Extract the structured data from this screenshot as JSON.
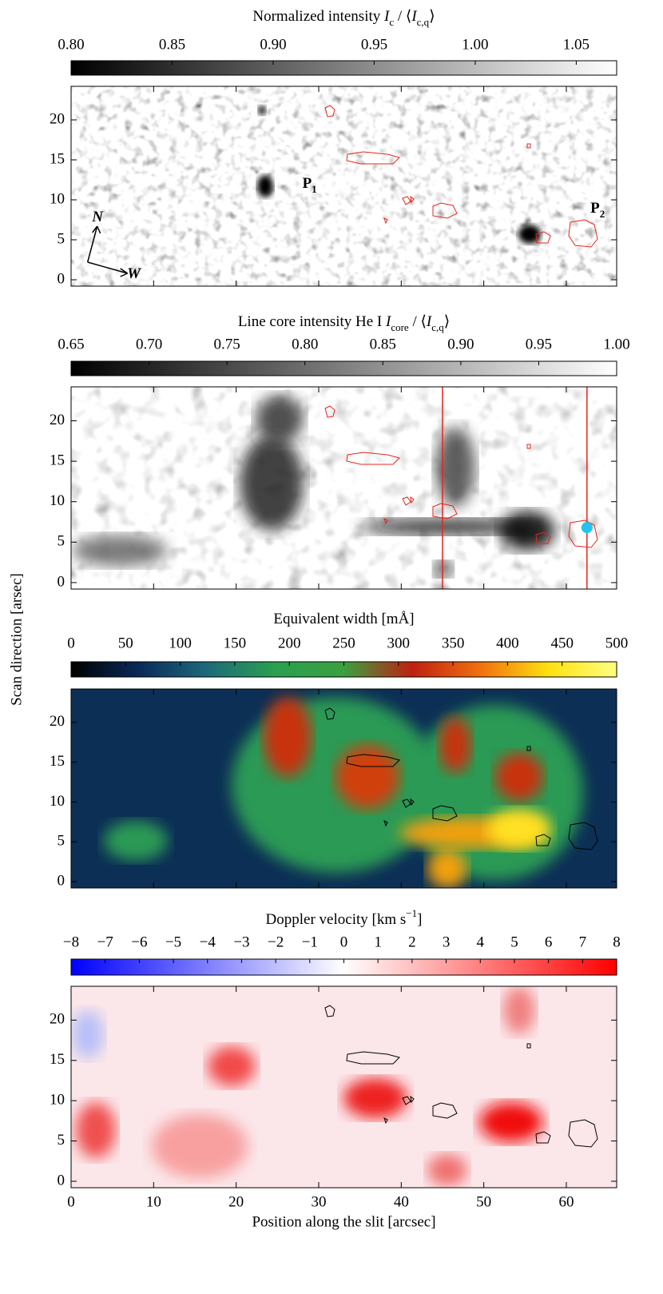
{
  "ylabel": "Scan direction   [arsec]",
  "chart_data": [
    {
      "type": "heatmap",
      "title": [
        {
          "text": "Normalized intensity  "
        },
        {
          "text": "I",
          "style": "italic"
        },
        {
          "text": "c",
          "style": "sub"
        },
        {
          "text": " / ⟨"
        },
        {
          "text": "I",
          "style": "italic"
        },
        {
          "text": "c,q",
          "style": "sub"
        },
        {
          "text": "⟩"
        }
      ],
      "colormap": [
        "#000000",
        "#ffffff"
      ],
      "clim": [
        0.8,
        1.07
      ],
      "cticks": [
        {
          "value": 0.8,
          "label": "0.80"
        },
        {
          "value": 0.85,
          "label": "0.85"
        },
        {
          "value": 0.9,
          "label": "0.90"
        },
        {
          "value": 0.95,
          "label": "0.95"
        },
        {
          "value": 1.0,
          "label": "1.00"
        },
        {
          "value": 1.05,
          "label": "1.05"
        }
      ],
      "xlim": [
        0,
        66.1
      ],
      "ylim": [
        -0.8,
        24.2
      ],
      "yticks": [
        0,
        5,
        10,
        15,
        20
      ],
      "contour_color": "#e8241c",
      "annotations": [
        {
          "text": "P",
          "sub": "1",
          "x": 28.9,
          "y": 11.9
        },
        {
          "text": "P",
          "sub": "2",
          "x": 63.8,
          "y": 8.8
        },
        {
          "text": "N",
          "x": 3.2,
          "y": 7.7
        },
        {
          "text": "W",
          "x": 7.6,
          "y": 0.6
        }
      ]
    },
    {
      "type": "heatmap",
      "title": [
        {
          "text": "Line core intensity He I   "
        },
        {
          "text": "I",
          "style": "italic"
        },
        {
          "text": "core",
          "style": "sub"
        },
        {
          "text": " / ⟨"
        },
        {
          "text": "I",
          "style": "italic"
        },
        {
          "text": "c,q",
          "style": "sub"
        },
        {
          "text": "⟩"
        }
      ],
      "colormap": [
        "#000000",
        "#ffffff"
      ],
      "clim": [
        0.65,
        1.0
      ],
      "cticks": [
        {
          "value": 0.65,
          "label": "0.65"
        },
        {
          "value": 0.7,
          "label": "0.70"
        },
        {
          "value": 0.75,
          "label": "0.75"
        },
        {
          "value": 0.8,
          "label": "0.80"
        },
        {
          "value": 0.85,
          "label": "0.85"
        },
        {
          "value": 0.9,
          "label": "0.90"
        },
        {
          "value": 0.95,
          "label": "0.95"
        },
        {
          "value": 1.0,
          "label": "1.00"
        }
      ],
      "xlim": [
        0,
        66.1
      ],
      "ylim": [
        -0.8,
        24.2
      ],
      "yticks": [
        0,
        5,
        10,
        15,
        20
      ],
      "contour_color": "#e8241c",
      "vlines": [
        45.0,
        62.5
      ],
      "vline_color": "#e8241c",
      "marker": {
        "x": 62.5,
        "y": 6.8,
        "color": "#22c4ee"
      }
    },
    {
      "type": "heatmap",
      "title": [
        {
          "text": "Equivalent width   [mÅ]"
        }
      ],
      "colormap": [
        "#000000",
        "#0a2a5a",
        "#1e6a7a",
        "#2aa050",
        "#3aa040",
        "#c02010",
        "#f07010",
        "#ffe010",
        "#ffff80"
      ],
      "clim": [
        0,
        500
      ],
      "cticks": [
        0,
        50,
        100,
        150,
        200,
        250,
        300,
        350,
        400,
        450,
        500
      ],
      "xlim": [
        0,
        66.1
      ],
      "ylim": [
        -0.8,
        24.2
      ],
      "yticks": [
        0,
        5,
        10,
        15,
        20
      ],
      "contour_color": "#000000"
    },
    {
      "type": "heatmap",
      "title": [
        {
          "text": "Doppler velocity   [km s"
        },
        {
          "text": "−1",
          "style": "sup"
        },
        {
          "text": "]"
        }
      ],
      "colormap": [
        "#0000ff",
        "#ffffff",
        "#ff0000"
      ],
      "clim": [
        -8,
        8
      ],
      "cticks": [
        {
          "value": -8,
          "label": "−8"
        },
        {
          "value": -7,
          "label": "−7"
        },
        {
          "value": -6,
          "label": "−6"
        },
        {
          "value": -5,
          "label": "−5"
        },
        {
          "value": -4,
          "label": "−4"
        },
        {
          "value": -3,
          "label": "−3"
        },
        {
          "value": -2,
          "label": "−2"
        },
        {
          "value": -1,
          "label": "−1"
        },
        0,
        1,
        2,
        3,
        4,
        5,
        6,
        7,
        8
      ],
      "xlim": [
        0,
        66.1
      ],
      "ylim": [
        -0.8,
        24.2
      ],
      "yticks": [
        0,
        5,
        10,
        15,
        20
      ],
      "contour_color": "#000000",
      "xticks": [
        0,
        10,
        20,
        30,
        40,
        50,
        60
      ],
      "xlabel": "Position along the slit   [arcsec]"
    }
  ]
}
